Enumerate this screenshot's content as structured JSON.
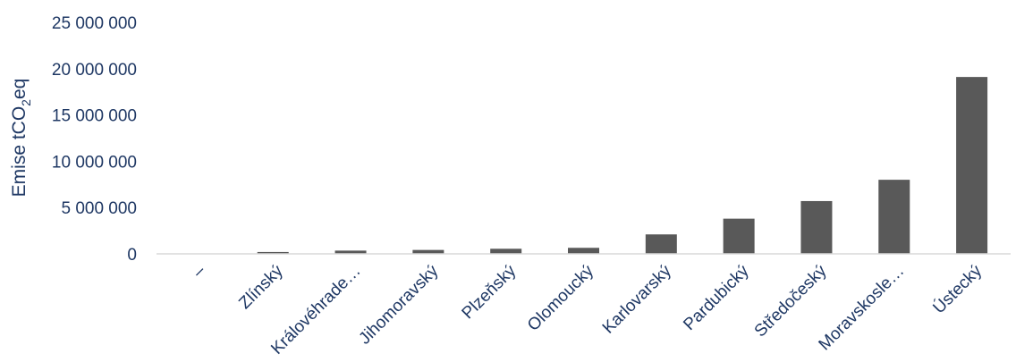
{
  "chart_data": {
    "type": "bar",
    "ylabel": "Emise tCO2eq",
    "ylabel_parts": {
      "main": "Emise tCO",
      "subscript": "2",
      "suffix": "eq"
    },
    "ylim": [
      0,
      25000000
    ],
    "yticks": [
      {
        "value": 0,
        "label": "0"
      },
      {
        "value": 5000000,
        "label": "5 000 000"
      },
      {
        "value": 10000000,
        "label": "10 000 000"
      },
      {
        "value": 15000000,
        "label": "15 000 000"
      },
      {
        "value": 20000000,
        "label": "20 000 000"
      },
      {
        "value": 25000000,
        "label": "25 000 000"
      }
    ],
    "categories": [
      "–",
      "Zlínský",
      "Královéhrade…",
      "Jihomoravský",
      "Plzeňský",
      "Olomoucký",
      "Karlovarský",
      "Pardubický",
      "Středočeský",
      "Moravskosle…",
      "Ústecký"
    ],
    "values": [
      0,
      200000,
      350000,
      420000,
      550000,
      650000,
      2100000,
      3800000,
      5700000,
      8000000,
      19100000
    ],
    "grid": false,
    "bar_color": "#595959",
    "text_color": "#1f3864",
    "axis_color": "#d9d9d9"
  }
}
